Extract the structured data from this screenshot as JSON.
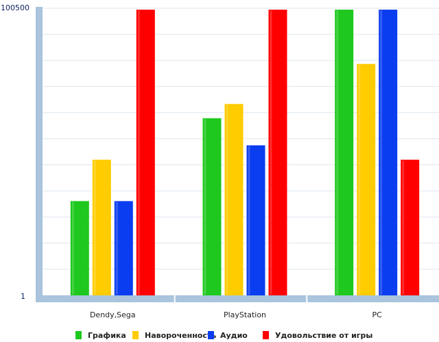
{
  "chart_data": {
    "type": "bar",
    "title": "",
    "xlabel": "",
    "ylabel": "",
    "ylim": [
      1,
      100500
    ],
    "y_tick_labels": {
      "top": "100500",
      "bottom": "1"
    },
    "categories": [
      "Dendy,Sega",
      "PlayStation",
      "PC"
    ],
    "series": [
      {
        "name": "Графика",
        "color": "#1ec81e",
        "values": [
          33000,
          62000,
          100000
        ]
      },
      {
        "name": "Навороченность",
        "color": "#ffcc00",
        "values": [
          47500,
          67000,
          81000
        ]
      },
      {
        "name": "Аудио",
        "color": "#0a3cf0",
        "values": [
          33000,
          52500,
          100000
        ]
      },
      {
        "name": "Удовольствие от игры",
        "color": "#ff0000",
        "values": [
          100000,
          100000,
          47500
        ]
      }
    ],
    "grid": true,
    "legend_position": "bottom"
  }
}
